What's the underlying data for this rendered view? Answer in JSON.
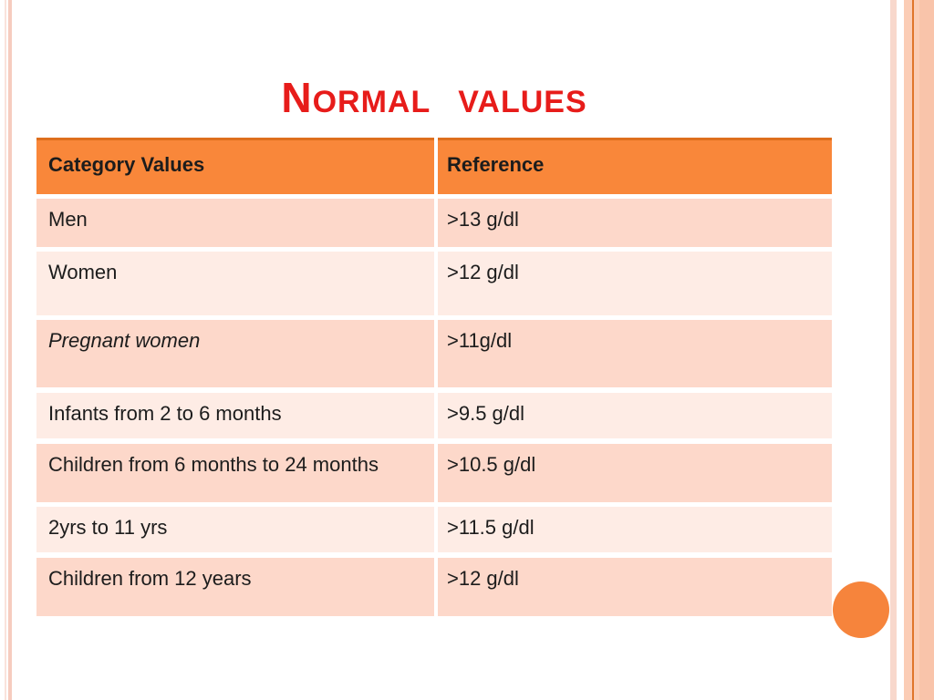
{
  "title": {
    "lead_cap": "N",
    "word1_rest": "ORMAL",
    "word2": "VALUES"
  },
  "table": {
    "headers": {
      "category": "Category Values",
      "reference": "Reference"
    },
    "rows": [
      {
        "category": "Men",
        "reference": ">13 g/dl"
      },
      {
        "category": "Women",
        "reference": ">12 g/dl"
      },
      {
        "category": "Pregnant women",
        "reference": ">11g/dl",
        "style": "italic"
      },
      {
        "category": "Infants from 2 to 6 months",
        "reference": ">9.5 g/dl"
      },
      {
        "category": "Children from 6 months to 24 months",
        "reference": ">10.5 g/dl"
      },
      {
        "category": "2yrs to 11 yrs",
        "reference": ">11.5 g/dl"
      },
      {
        "category": "Children from 12 years",
        "reference": ">12 g/dl"
      }
    ]
  },
  "colors": {
    "title-red": "#E71C1A",
    "header-orange": "#F9873A",
    "header-top-line": "#DE6F1D",
    "row-dark": "#FDD8CA",
    "row-light": "#FEECE5",
    "text": "#1C1C1C",
    "circle-orange": "#F6843C",
    "right-pink-stripe": "#F8D8CC",
    "right-salmon": "#FBCDB6",
    "right-salmon-dark": "#F9C4AA",
    "right-line": "#E0762B",
    "left-stripe-thin": "#FAE3DC",
    "left-stripe-thick": "#F6CCBF"
  }
}
